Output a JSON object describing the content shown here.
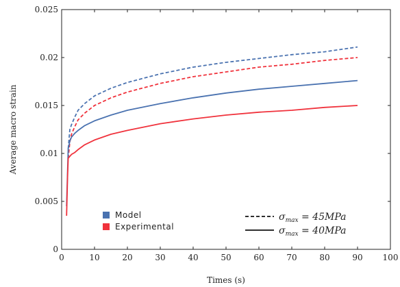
{
  "chart_data": {
    "type": "line",
    "xlabel": "Times (s)",
    "ylabel": "Average macro strain",
    "xlim": [
      0,
      100
    ],
    "ylim": [
      0,
      0.025
    ],
    "x_ticks": [
      0,
      10,
      20,
      30,
      40,
      50,
      60,
      70,
      80,
      90,
      100
    ],
    "y_ticks": [
      0,
      0.005,
      0.01,
      0.015,
      0.02,
      0.025
    ],
    "x_tick_labels": [
      "0",
      "10",
      "20",
      "30",
      "40",
      "50",
      "60",
      "70",
      "80",
      "90",
      "100"
    ],
    "y_tick_labels": [
      "0",
      "0.005",
      "0.01",
      "0.015",
      "0.02",
      "0.025"
    ],
    "grid": false,
    "legend_color": {
      "placement": "bottom-left",
      "entries": [
        {
          "label": "Model",
          "color": "#4a72b0"
        },
        {
          "label": "Experimental",
          "color": "#f0323c"
        }
      ]
    },
    "legend_style": {
      "placement": "bottom-right",
      "entries": [
        {
          "dash": "dashed",
          "sigma": "σ",
          "sub": "max",
          "rest": " = 45MPa"
        },
        {
          "dash": "solid",
          "sigma": "σ",
          "sub": "max",
          "rest": " = 40MPa"
        }
      ]
    },
    "series": [
      {
        "group": "Model",
        "stress": "45 MPa",
        "color": "#4a72b0",
        "dash": "dashed",
        "x": [
          2,
          2.5,
          3,
          4,
          5,
          7,
          10,
          15,
          20,
          30,
          40,
          50,
          60,
          70,
          80,
          90
        ],
        "y": [
          0.0105,
          0.0125,
          0.013,
          0.0138,
          0.0145,
          0.0152,
          0.016,
          0.0168,
          0.0174,
          0.0183,
          0.019,
          0.0195,
          0.0199,
          0.0203,
          0.0206,
          0.0211
        ]
      },
      {
        "group": "Experimental",
        "stress": "45 MPa",
        "color": "#f0323c",
        "dash": "dashed",
        "x": [
          2,
          2.5,
          3,
          4,
          5,
          7,
          10,
          15,
          20,
          30,
          40,
          50,
          60,
          70,
          80,
          90
        ],
        "y": [
          0.0095,
          0.0112,
          0.012,
          0.0128,
          0.0135,
          0.0142,
          0.015,
          0.0158,
          0.0164,
          0.0173,
          0.018,
          0.0185,
          0.019,
          0.0193,
          0.0197,
          0.02
        ]
      },
      {
        "group": "Model",
        "stress": "40 MPa",
        "color": "#4a72b0",
        "dash": "solid",
        "x": [
          1.5,
          1.8,
          2,
          2.5,
          3,
          4,
          5,
          7,
          10,
          15,
          20,
          30,
          40,
          50,
          60,
          70,
          80,
          90
        ],
        "y": [
          0.0045,
          0.008,
          0.0105,
          0.0113,
          0.0117,
          0.0121,
          0.0124,
          0.0129,
          0.0134,
          0.014,
          0.0145,
          0.0152,
          0.0158,
          0.0163,
          0.0167,
          0.017,
          0.0173,
          0.0176
        ]
      },
      {
        "group": "Experimental",
        "stress": "40 MPa",
        "color": "#f0323c",
        "dash": "solid",
        "x": [
          1.5,
          1.8,
          2,
          2.5,
          3,
          4,
          5,
          7,
          10,
          15,
          20,
          30,
          40,
          50,
          60,
          70,
          80,
          90
        ],
        "y": [
          0.0035,
          0.0075,
          0.0095,
          0.0097,
          0.0099,
          0.0101,
          0.0104,
          0.0109,
          0.0114,
          0.012,
          0.0124,
          0.0131,
          0.0136,
          0.014,
          0.0143,
          0.0145,
          0.0148,
          0.015
        ]
      }
    ]
  }
}
